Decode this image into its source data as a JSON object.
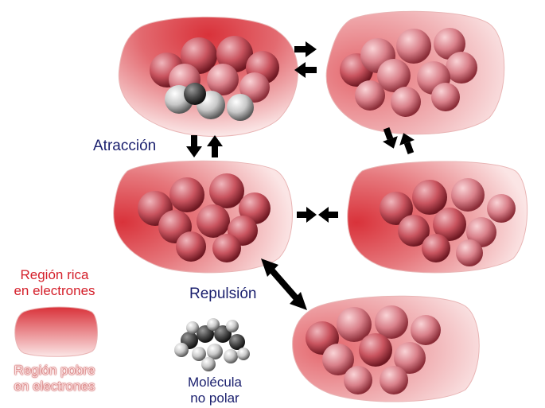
{
  "labels": {
    "attraction": "Atracción",
    "repulsion": "Repulsión",
    "rich_region_line1": "Región rica",
    "rich_region_line2": "en electrones",
    "poor_region_line1": "Región pobre",
    "poor_region_line2": "en electrones",
    "nonpolar_line1": "Molécula",
    "nonpolar_line2": "no polar"
  },
  "colors": {
    "electron_rich": "#d9323a",
    "electron_poor": "#f7dcdc",
    "atom_pink": "#e8a0a8",
    "atom_dark": "#8a1f2b",
    "text_navy": "#1a1f6e",
    "text_red": "#d41f2a",
    "arrow": "#000000"
  },
  "molecules": [
    {
      "id": "top-left",
      "rich_side": "top"
    },
    {
      "id": "top-right",
      "rich_side": "left"
    },
    {
      "id": "mid-left",
      "rich_side": "left"
    },
    {
      "id": "mid-right",
      "rich_side": "left"
    },
    {
      "id": "bottom-right",
      "rich_side": "left"
    }
  ]
}
